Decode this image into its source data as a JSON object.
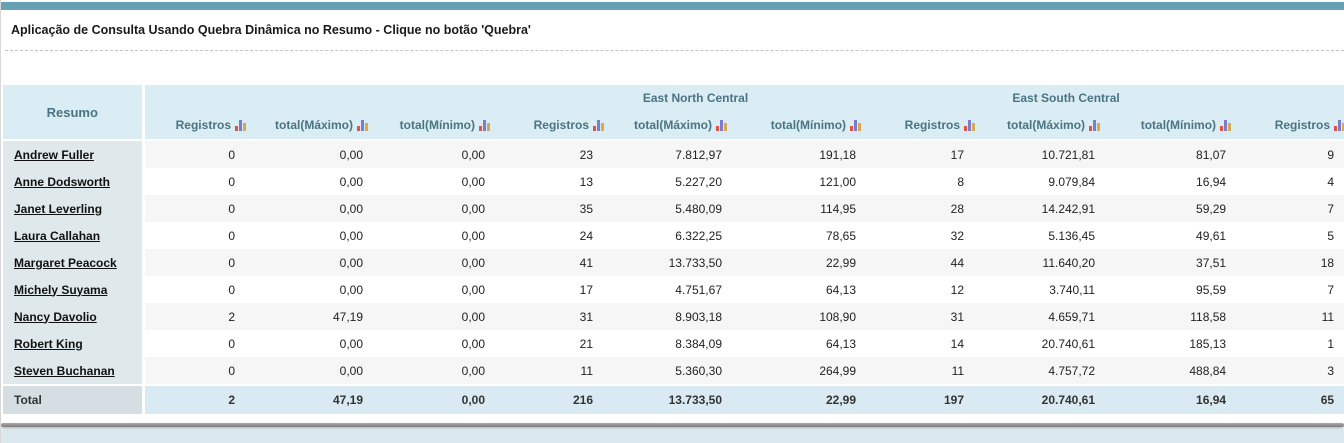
{
  "page": {
    "title": "Aplicação de Consulta Usando Quebra Dinâmica no Resumo - Clique no botão 'Quebra'"
  },
  "table": {
    "summary_column_header": "Resumo",
    "groups": [
      {
        "label": ""
      },
      {
        "label": "East North Central"
      },
      {
        "label": "East South Central"
      },
      {
        "label": ""
      }
    ],
    "column_headers": [
      "Registros",
      "total(Máximo)",
      "total(Mínimo)",
      "Registros",
      "total(Máximo)",
      "total(Mínimo)",
      "Registros",
      "total(Máximo)",
      "total(Mínimo)",
      "Registros"
    ],
    "sort_icon": "mini-bar-chart-icon",
    "rows": [
      {
        "name": "Andrew Fuller",
        "cells": [
          "0",
          "0,00",
          "0,00",
          "23",
          "7.812,97",
          "191,18",
          "17",
          "10.721,81",
          "81,07",
          "9"
        ]
      },
      {
        "name": "Anne Dodsworth",
        "cells": [
          "0",
          "0,00",
          "0,00",
          "13",
          "5.227,20",
          "121,00",
          "8",
          "9.079,84",
          "16,94",
          "4"
        ]
      },
      {
        "name": "Janet Leverling",
        "cells": [
          "0",
          "0,00",
          "0,00",
          "35",
          "5.480,09",
          "114,95",
          "28",
          "14.242,91",
          "59,29",
          "7"
        ]
      },
      {
        "name": "Laura Callahan",
        "cells": [
          "0",
          "0,00",
          "0,00",
          "24",
          "6.322,25",
          "78,65",
          "32",
          "5.136,45",
          "49,61",
          "5"
        ]
      },
      {
        "name": "Margaret Peacock",
        "cells": [
          "0",
          "0,00",
          "0,00",
          "41",
          "13.733,50",
          "22,99",
          "44",
          "11.640,20",
          "37,51",
          "18"
        ]
      },
      {
        "name": "Michely Suyama",
        "cells": [
          "0",
          "0,00",
          "0,00",
          "17",
          "4.751,67",
          "64,13",
          "12",
          "3.740,11",
          "95,59",
          "7"
        ]
      },
      {
        "name": "Nancy Davolio",
        "cells": [
          "2",
          "47,19",
          "0,00",
          "31",
          "8.903,18",
          "108,90",
          "31",
          "4.659,71",
          "118,58",
          "11"
        ]
      },
      {
        "name": "Robert King",
        "cells": [
          "0",
          "0,00",
          "0,00",
          "21",
          "8.384,09",
          "64,13",
          "14",
          "20.740,61",
          "185,13",
          "1"
        ]
      },
      {
        "name": "Steven Buchanan",
        "cells": [
          "0",
          "0,00",
          "0,00",
          "11",
          "5.360,30",
          "264,99",
          "11",
          "4.757,72",
          "488,84",
          "3"
        ]
      }
    ],
    "total_row": {
      "label": "Total",
      "cells": [
        "2",
        "47,19",
        "0,00",
        "216",
        "13.733,50",
        "22,99",
        "197",
        "20.740,61",
        "16,94",
        "65"
      ]
    }
  },
  "colors": {
    "accent_bar": "#68a1b4",
    "header_bg": "#daedf4",
    "header_text": "#4a7482",
    "name_column_bg": "#dfe9ec",
    "row_stripe": "#f6f6f6",
    "total_row_bg": "#d9eaf2",
    "total_label_bg": "#d5dfe3",
    "footer_strip": "#dae9ef",
    "sort_icon_red": "#e05348",
    "sort_icon_indigo": "#7c7ccc",
    "sort_icon_tan": "#d6a851"
  }
}
